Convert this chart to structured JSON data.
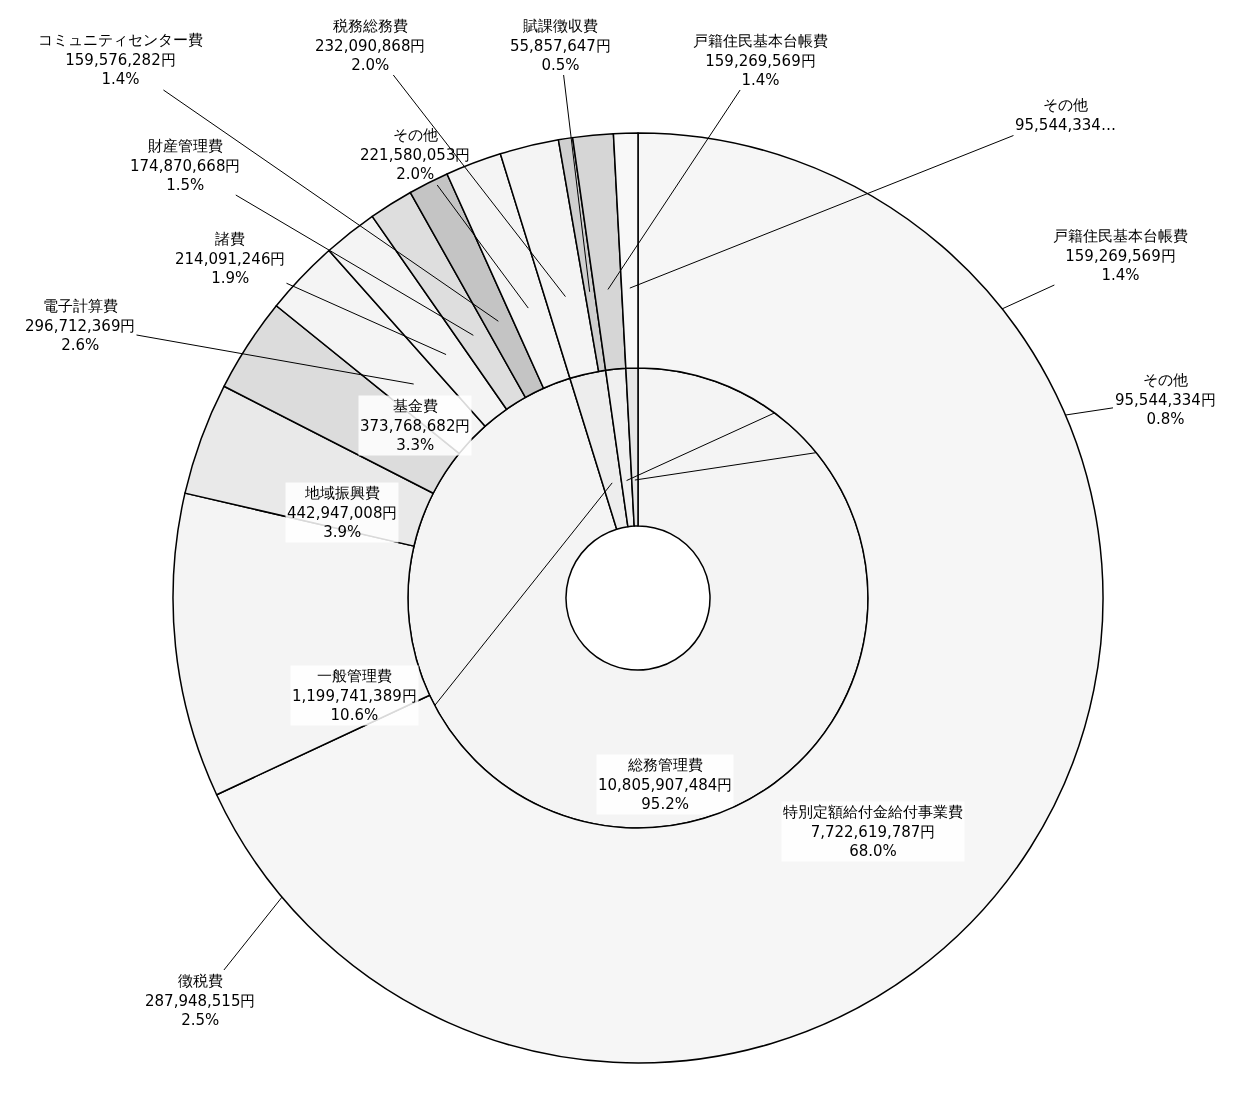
{
  "chart_data": [
    {
      "type": "donut",
      "categories": [
        "総務管理費",
        "徴税費",
        "戸籍住民基本台帳費",
        "その他"
      ],
      "values": [
        10805907484,
        287948515,
        159269569,
        95544334
      ],
      "value_labels": [
        "10,805,907,484円\n95.2%",
        "287,948,515円\n2.5%",
        "159,269,569円\n1.4%",
        "95,544,334円\n0.8%"
      ],
      "colors": [
        "#f4f4f4",
        "#ededed",
        "#f0f0f0",
        "#e6e6e6"
      ]
    },
    {
      "type": "donut",
      "categories": [
        "特別定額給付金給付事業費",
        "一般管理費",
        "地域振興費",
        "基金費",
        "電子計算費",
        "諸費",
        "財産管理費",
        "コミュニティセンター費",
        "その他",
        "税務総務費",
        "賦課徴収費",
        "戸籍住民基本台帳費",
        "その他"
      ],
      "values": [
        7722619787,
        1199741389,
        442947008,
        373768682,
        296712369,
        214091246,
        174870668,
        159576282,
        221580053,
        232090868,
        55857647,
        159269569,
        95544334
      ],
      "value_labels": [
        "7,722,619,787円\n68.0%",
        "1,199,741,389円\n10.6%",
        "442,947,008円\n3.9%",
        "373,768,682円\n3.3%",
        "296,712,369円\n2.6%",
        "214,091,246円\n1.9%",
        "174,870,668円\n1.5%",
        "159,576,282円\n1.4%",
        "221,580,053円\n2.0%",
        "232,090,868円\n2.0%",
        "55,857,647円\n0.5%",
        "159,269,569円\n1.4%",
        "95,544,334…"
      ],
      "colors": [
        "#f6f6f6",
        "#f4f4f4",
        "#e9e9e9",
        "#dcdcdc",
        "#f4f4f4",
        "#f4f4f4",
        "#dedede",
        "#c4c4c4",
        "#f4f4f4",
        "#f4f4f4",
        "#cfcfcf",
        "#d6d6d6",
        "#f8f8f8"
      ]
    }
  ]
}
